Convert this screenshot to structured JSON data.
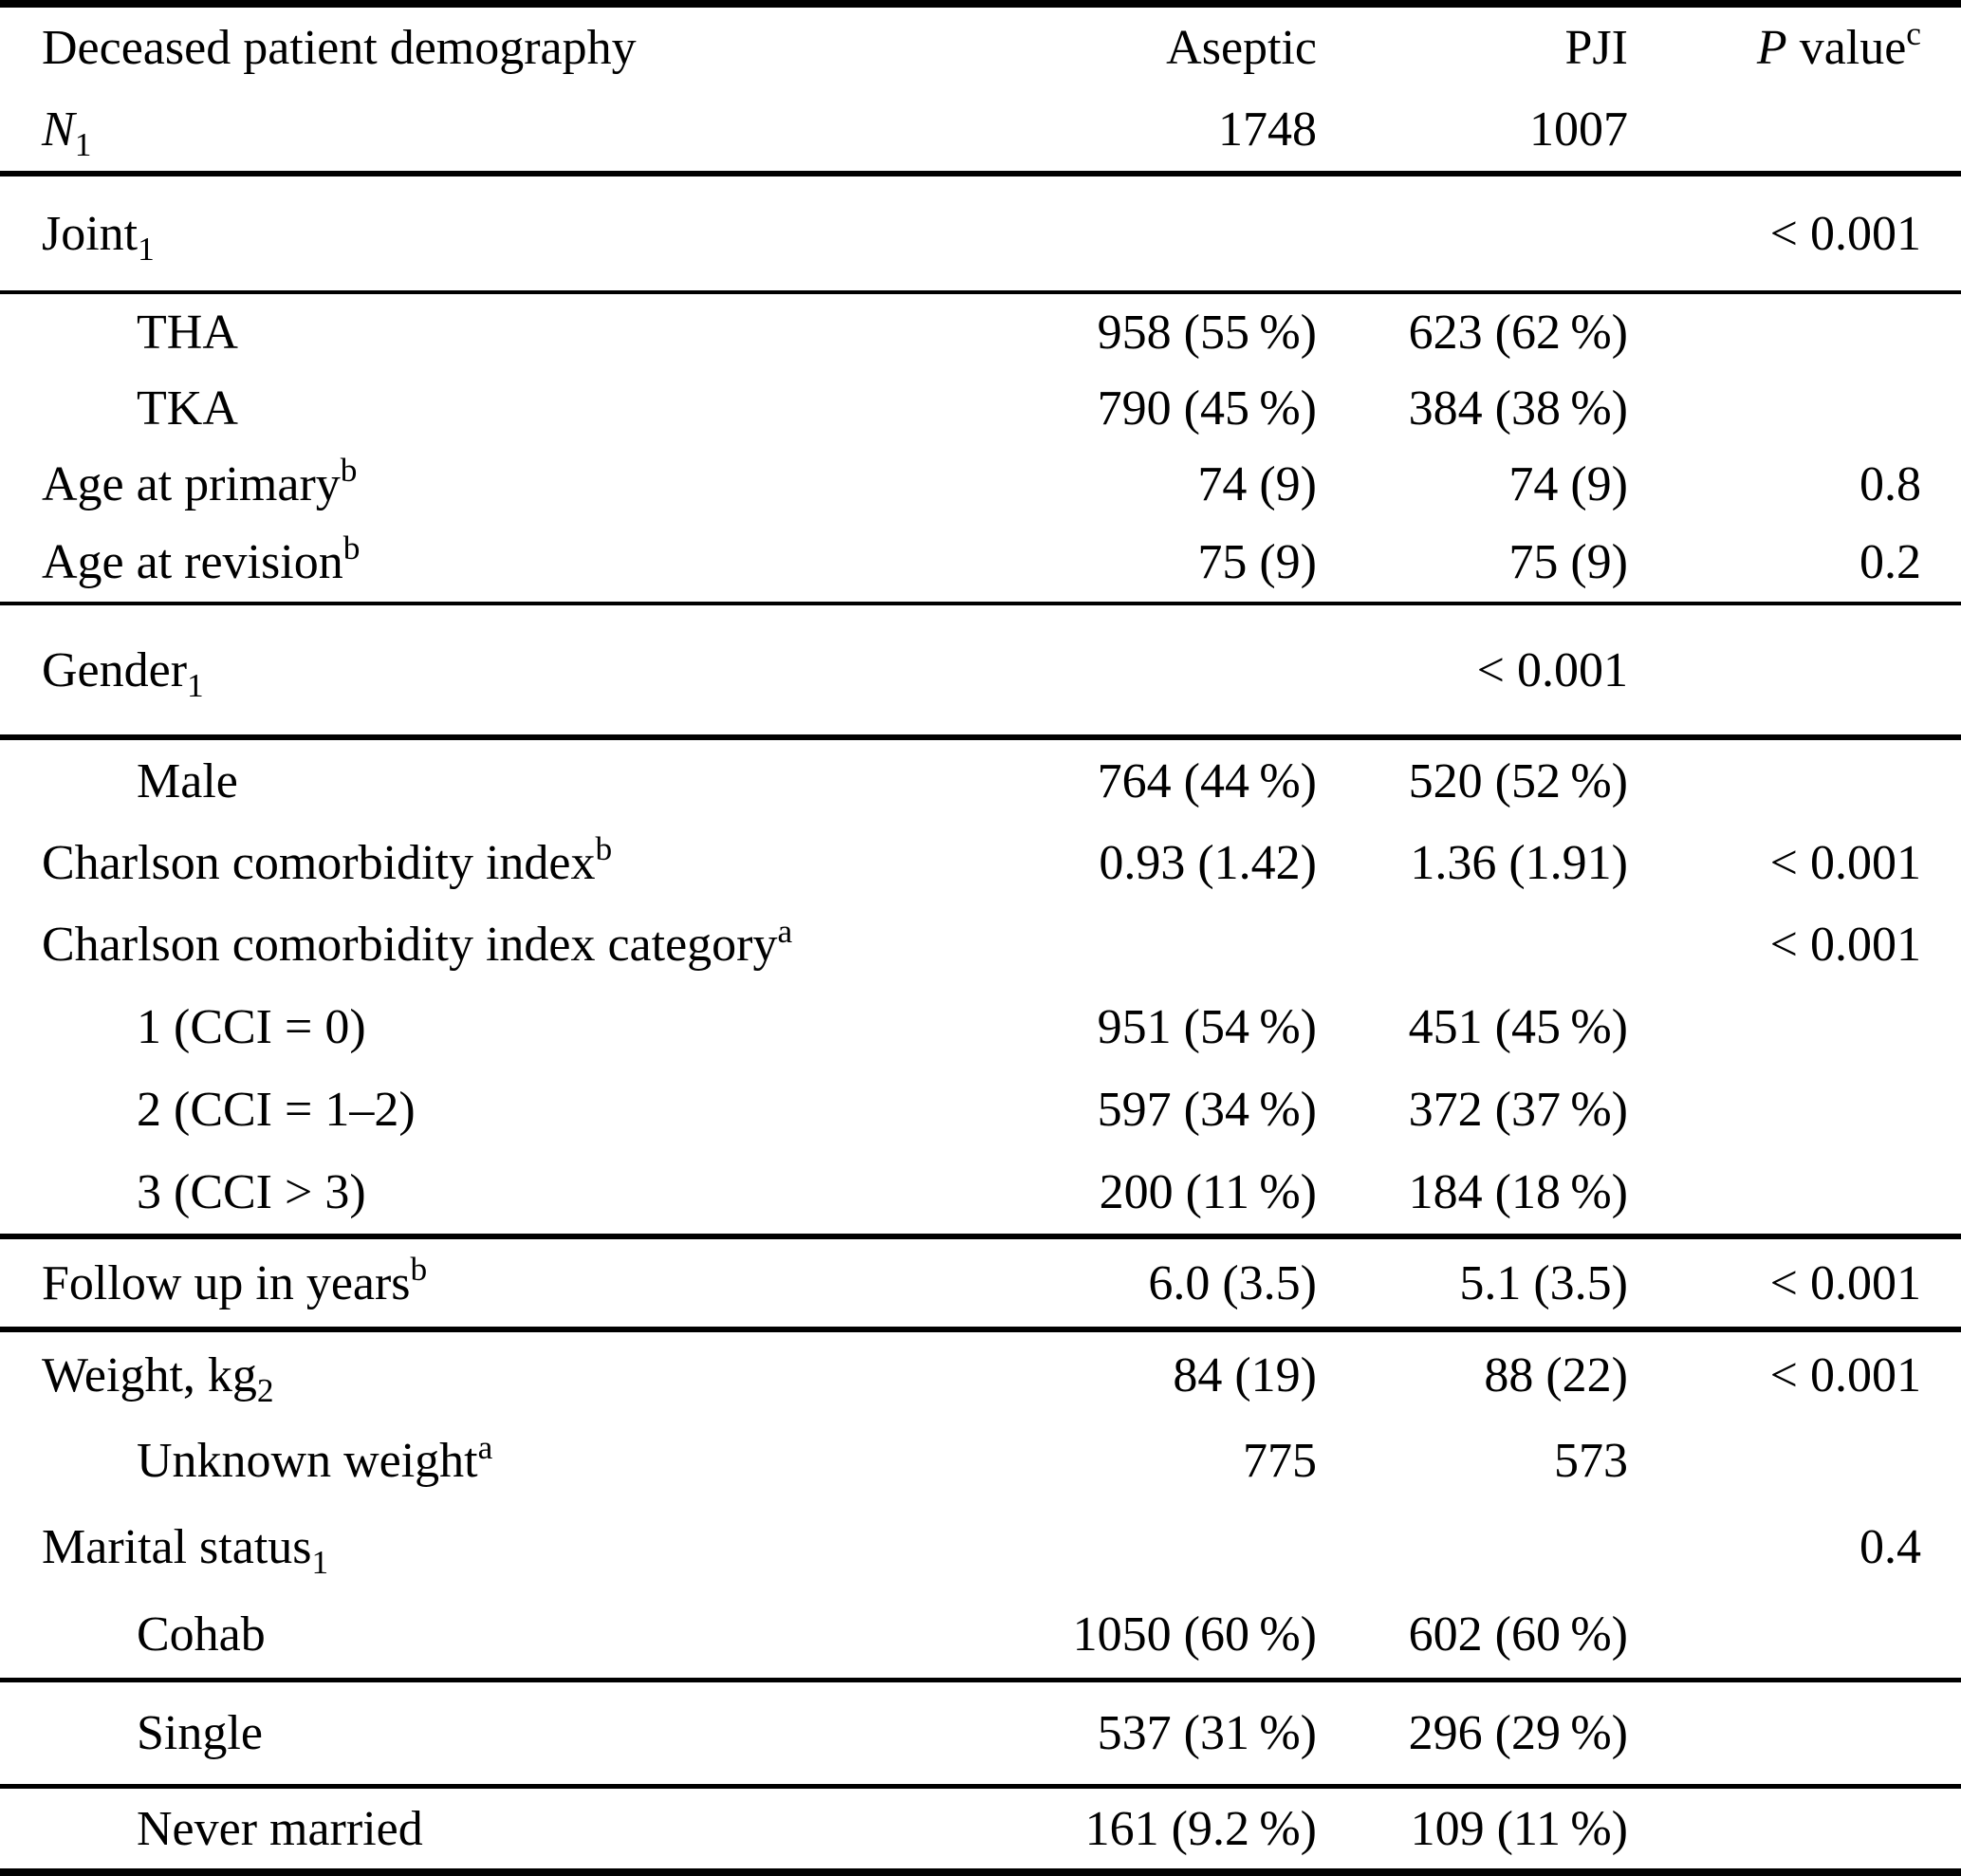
{
  "page": {
    "background": "#ffffff",
    "text_color": "#000000",
    "rule_color": "#000000"
  },
  "table": {
    "title": "Deceased patient demography",
    "column_headers": [
      "Deceased patient demography",
      "Aseptic",
      "PJI",
      "P value"
    ],
    "sections": [
      {
        "type": "row",
        "name": "header-row-1",
        "c1": {
          "t": "Deceased patient demography"
        },
        "c2": {
          "t": "Aseptic"
        },
        "c3": {
          "t": "PJI"
        },
        "c4": {
          "it": "P",
          "t": " value",
          "sp": "c"
        }
      },
      {
        "type": "row",
        "name": "header-row-2",
        "c1": {
          "it": "N",
          "sb": "1"
        },
        "c2": {
          "t": "1748"
        },
        "c3": {
          "t": "1007"
        },
        "c4": null
      },
      {
        "type": "rule",
        "weight": "thick"
      },
      {
        "type": "row",
        "name": "joint",
        "c1": {
          "t": "Joint",
          "sb": "1"
        },
        "c2": null,
        "c3": null,
        "c4": {
          "t": "< 0.001"
        }
      },
      {
        "type": "rule",
        "weight": "thin"
      },
      {
        "type": "row",
        "name": "tha",
        "c1": {
          "t": "THA",
          "ind": true
        },
        "c2": {
          "t": "958 (55 %)"
        },
        "c3": {
          "t": "623 (62 %)"
        },
        "c4": null
      },
      {
        "type": "row",
        "name": "tka",
        "c1": {
          "t": "TKA",
          "ind": true
        },
        "c2": {
          "t": "790 (45 %)"
        },
        "c3": {
          "t": "384 (38 %)"
        },
        "c4": null
      },
      {
        "type": "row",
        "name": "age-at-primary",
        "c1": {
          "t": "Age at primary",
          "sp": "b"
        },
        "c2": {
          "t": "74 (9)"
        },
        "c3": {
          "t": "74 (9)"
        },
        "c4": {
          "t": "0.8"
        }
      },
      {
        "type": "row",
        "name": "age-at-revision",
        "c1": {
          "t": "Age at revision",
          "sp": "b"
        },
        "c2": {
          "t": "75 (9)"
        },
        "c3": {
          "t": "75 (9)"
        },
        "c4": {
          "t": "0.2"
        }
      },
      {
        "type": "rule",
        "weight": "thin"
      },
      {
        "type": "row",
        "name": "gender",
        "c1": {
          "t": "Gender",
          "sb": "1"
        },
        "c2": null,
        "c3": {
          "t": "< 0.001"
        },
        "c4": null
      },
      {
        "type": "rule",
        "weight": "thick"
      },
      {
        "type": "row",
        "name": "male",
        "c1": {
          "t": "Male",
          "ind": true
        },
        "c2": {
          "t": "764 (44 %)"
        },
        "c3": {
          "t": "520 (52 %)"
        },
        "c4": null
      },
      {
        "type": "row",
        "name": "charlson-comorbidity-index",
        "c1": {
          "t": "Charlson comorbidity index",
          "sp": "b"
        },
        "c2": {
          "t": "0.93 (1.42)"
        },
        "c3": {
          "t": "1.36 (1.91)"
        },
        "c4": {
          "t": "< 0.001"
        }
      },
      {
        "type": "row",
        "name": "charlson-comorbidity-index-category",
        "c1": {
          "t": "Charlson comorbidity index category",
          "sp": "a"
        },
        "c2": null,
        "c3": null,
        "c4": {
          "t": "< 0.001"
        }
      },
      {
        "type": "row",
        "name": "cci-equals-0",
        "c1": {
          "t": "1 (CCI = 0)",
          "ind": true
        },
        "c2": {
          "t": "951 (54 %)"
        },
        "c3": {
          "t": "451 (45 %)"
        },
        "c4": null
      },
      {
        "type": "row",
        "name": "cci-1-2",
        "c1": {
          "t": "2 (CCI = 1–2)",
          "ind": true
        },
        "c2": {
          "t": "597 (34 %)"
        },
        "c3": {
          "t": "372 (37 %)"
        },
        "c4": null
      },
      {
        "type": "row",
        "name": "cci-gt-3",
        "c1": {
          "t": "3 (CCI > 3)",
          "ind": true
        },
        "c2": {
          "t": "200 (11 %)"
        },
        "c3": {
          "t": "184 (18 %)"
        },
        "c4": null
      },
      {
        "type": "rule",
        "weight": "thick"
      },
      {
        "type": "row",
        "name": "follow-up-in-years",
        "c1": {
          "t": "Follow up in years",
          "sp": "b"
        },
        "c2": {
          "t": "6.0 (3.5)"
        },
        "c3": {
          "t": "5.1 (3.5)"
        },
        "c4": {
          "t": "< 0.001"
        }
      },
      {
        "type": "rule",
        "weight": "thick"
      },
      {
        "type": "row",
        "name": "weight-kg",
        "c1": {
          "t": "Weight, kg",
          "sb": "2"
        },
        "c2": {
          "t": "84 (19)"
        },
        "c3": {
          "t": "88 (22)"
        },
        "c4": {
          "t": "< 0.001"
        }
      },
      {
        "type": "row",
        "name": "unknown-weight",
        "c1": {
          "t": "Unknown weight",
          "sp": "a",
          "ind": true
        },
        "c2": {
          "t": "775"
        },
        "c3": {
          "t": "573"
        },
        "c4": null
      },
      {
        "type": "row",
        "name": "marital-status",
        "c1": {
          "t": "Marital status",
          "sb": "1"
        },
        "c2": null,
        "c3": null,
        "c4": {
          "t": "0.4"
        }
      },
      {
        "type": "row",
        "name": "cohab",
        "c1": {
          "t": "Cohab",
          "ind": true
        },
        "c2": {
          "t": "1050 (60 %)"
        },
        "c3": {
          "t": "602 (60 %)"
        },
        "c4": null
      },
      {
        "type": "rule",
        "weight": "medium"
      },
      {
        "type": "row",
        "name": "single",
        "c1": {
          "t": "Single",
          "ind": true
        },
        "c2": {
          "t": "537 (31 %)"
        },
        "c3": {
          "t": "296 (29 %)"
        },
        "c4": null
      },
      {
        "type": "rule",
        "weight": "medium"
      },
      {
        "type": "row",
        "name": "never-married",
        "c1": {
          "t": "Never married",
          "ind": true
        },
        "c2": {
          "t": "161 (9.2 %)"
        },
        "c3": {
          "t": "109 (11 %)"
        },
        "c4": null
      }
    ]
  }
}
